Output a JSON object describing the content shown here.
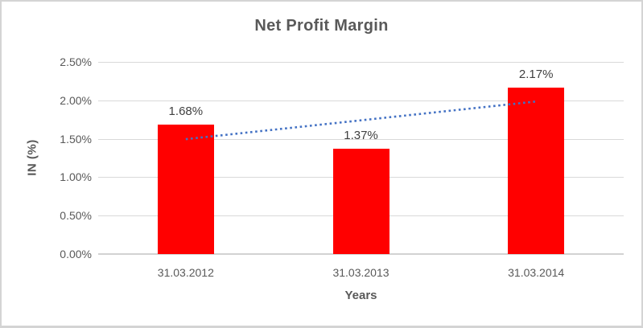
{
  "frame": {
    "background": "#FFFFFF",
    "border_color": "#D4D4D4"
  },
  "chart_data": {
    "type": "bar",
    "title": "Net Profit Margin",
    "categories": [
      "31.03.2012",
      "31.03.2013",
      "31.03.2014"
    ],
    "values": [
      1.68,
      1.37,
      2.17
    ],
    "value_labels": [
      "1.68%",
      "1.37%",
      "2.17%"
    ],
    "xlabel": "Years",
    "ylabel": "IN (%)",
    "ylim": [
      0,
      2.5
    ],
    "yticks": [
      0,
      0.5,
      1.0,
      1.5,
      2.0,
      2.5
    ],
    "ytick_labels": [
      "0.00%",
      "0.50%",
      "1.00%",
      "1.50%",
      "2.00%",
      "2.50%"
    ],
    "grid": true,
    "legend": "none",
    "bar_color": "#FF0000",
    "gridline_color": "#D9D9D9",
    "axis_line_color": "#D2D2D2",
    "text_color": "#595959",
    "data_label_color": "#404040",
    "trendline": {
      "type": "linear",
      "style": "dotted",
      "color": "#4472C4",
      "start_value": 1.495,
      "end_value": 1.985
    }
  }
}
